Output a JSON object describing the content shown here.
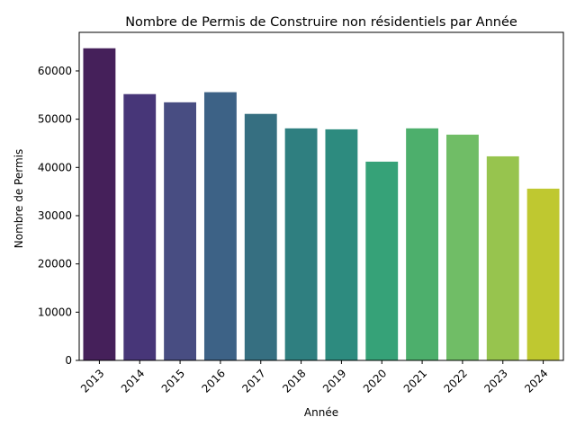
{
  "chart_data": {
    "type": "bar",
    "title": "Nombre de Permis de Construire non résidentiels par Année",
    "xlabel": "Année",
    "ylabel": "Nombre de Permis",
    "categories": [
      "2013",
      "2014",
      "2015",
      "2016",
      "2017",
      "2018",
      "2019",
      "2020",
      "2021",
      "2022",
      "2023",
      "2024"
    ],
    "values": [
      64700,
      55200,
      53500,
      55600,
      51100,
      48100,
      47900,
      41200,
      48100,
      46800,
      42300,
      35600
    ],
    "ylim": [
      0,
      68000
    ],
    "yticks": [
      0,
      10000,
      20000,
      30000,
      40000,
      50000,
      60000
    ],
    "colors": [
      "#45205a",
      "#473678",
      "#484d82",
      "#3d6286",
      "#366f81",
      "#2f7f80",
      "#2d8b7f",
      "#36a278",
      "#4daf6c",
      "#70bd66",
      "#97c44e",
      "#bfc830"
    ],
    "grid": false,
    "legend": "none"
  }
}
